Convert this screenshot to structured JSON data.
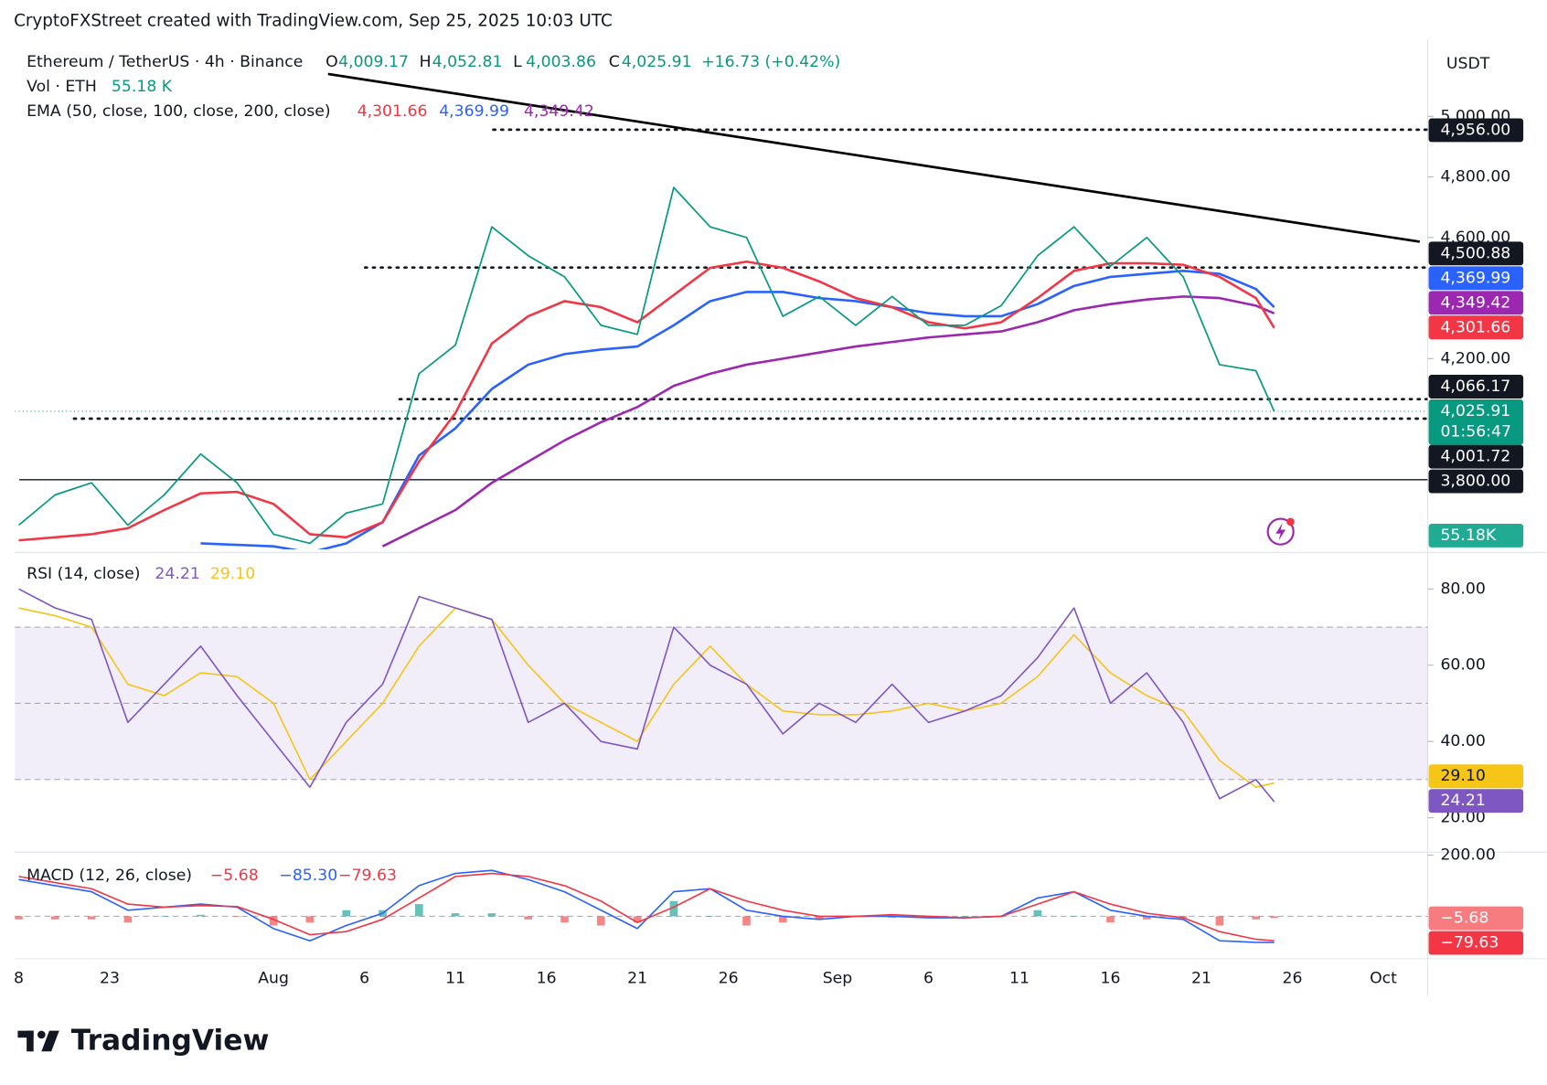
{
  "header": {
    "attribution": "CryptoFXStreet created with TradingView.com, Sep 25, 2025 10:03 UTC"
  },
  "time_axis": {
    "xlim": [
      "2025-07-18",
      "2025-10-03"
    ],
    "ticks": [
      {
        "value": "2025-07-18",
        "label": "8"
      },
      {
        "value": "2025-07-23",
        "label": "23"
      },
      {
        "value": "2025-08-01",
        "label": "Aug"
      },
      {
        "value": "2025-08-06",
        "label": "6"
      },
      {
        "value": "2025-08-11",
        "label": "11"
      },
      {
        "value": "2025-08-16",
        "label": "16"
      },
      {
        "value": "2025-08-21",
        "label": "21"
      },
      {
        "value": "2025-08-26",
        "label": "26"
      },
      {
        "value": "2025-09-01",
        "label": "Sep"
      },
      {
        "value": "2025-09-06",
        "label": "6"
      },
      {
        "value": "2025-09-11",
        "label": "11"
      },
      {
        "value": "2025-09-16",
        "label": "16"
      },
      {
        "value": "2025-09-21",
        "label": "21"
      },
      {
        "value": "2025-09-26",
        "label": "26"
      },
      {
        "value": "2025-10-01",
        "label": "Oct"
      }
    ]
  },
  "chart_data": [
    {
      "type": "line",
      "symbol": "Ethereum / TetherUS · 4h · Binance",
      "ohlc": [
        {
          "key": "O",
          "value": "4,009.17"
        },
        {
          "key": "H",
          "value": "4,052.81"
        },
        {
          "key": "L",
          "value": "4,003.86"
        },
        {
          "key": "C",
          "value": "4,025.91"
        }
      ],
      "change": "+16.73 (+0.42%)",
      "volume": {
        "label": "Vol · ETH",
        "value": "55.18 K",
        "axis_label": "55.18K",
        "color": "#22ab94"
      },
      "ema_label": "EMA (50, close, 100, close, 200, close)",
      "axis_unit": "USDT",
      "x": [
        "2025-07-18",
        "2025-07-20",
        "2025-07-22",
        "2025-07-24",
        "2025-07-26",
        "2025-07-28",
        "2025-07-30",
        "2025-08-01",
        "2025-08-03",
        "2025-08-05",
        "2025-08-07",
        "2025-08-09",
        "2025-08-11",
        "2025-08-13",
        "2025-08-15",
        "2025-08-17",
        "2025-08-19",
        "2025-08-21",
        "2025-08-23",
        "2025-08-25",
        "2025-08-27",
        "2025-08-29",
        "2025-08-31",
        "2025-09-02",
        "2025-09-04",
        "2025-09-06",
        "2025-09-08",
        "2025-09-10",
        "2025-09-12",
        "2025-09-14",
        "2025-09-16",
        "2025-09-18",
        "2025-09-20",
        "2025-09-22",
        "2025-09-24",
        "2025-09-25"
      ],
      "ylim": [
        3570,
        5254
      ],
      "yticks": [
        {
          "value": 5000,
          "label": "5,000.00"
        },
        {
          "value": 4800,
          "label": "4,800.00"
        },
        {
          "value": 4600,
          "label": "4,600.00"
        },
        {
          "value": 4200,
          "label": "4,200.00"
        }
      ],
      "series": [
        {
          "color": "#089981",
          "last_label": "4,025.91",
          "countdown": "01:56:47",
          "values": [
            3650,
            3750,
            3790,
            3650,
            3750,
            3885,
            3790,
            3620,
            3590,
            3690,
            3720,
            4150,
            4245,
            4635,
            4540,
            4470,
            4310,
            4280,
            4765,
            4635,
            4600,
            4340,
            4405,
            4310,
            4405,
            4310,
            4310,
            4375,
            4540,
            4635,
            4505,
            4600,
            4470,
            4180,
            4160,
            4025.91
          ]
        },
        {
          "color": "#f23645",
          "last_label": "4,301.66",
          "values": [
            3600,
            3610,
            3620,
            3640,
            3700,
            3755,
            3760,
            3720,
            3620,
            3610,
            3660,
            3860,
            4020,
            4250,
            4340,
            4390,
            4370,
            4320,
            4410,
            4500,
            4520,
            4500,
            4455,
            4400,
            4370,
            4320,
            4300,
            4320,
            4400,
            4490,
            4515,
            4515,
            4510,
            4470,
            4400,
            4301.66
          ]
        },
        {
          "color": "#2962ff",
          "last_label": "4,369.99",
          "values": [
            null,
            null,
            null,
            null,
            null,
            3590,
            3585,
            3580,
            3560,
            3590,
            3660,
            3880,
            3970,
            4100,
            4180,
            4215,
            4230,
            4240,
            4310,
            4390,
            4420,
            4420,
            4400,
            4390,
            4370,
            4350,
            4340,
            4340,
            4380,
            4440,
            4470,
            4480,
            4490,
            4480,
            4430,
            4369.99
          ]
        },
        {
          "color": "#9c27b0",
          "last_label": "4,349.42",
          "values": [
            null,
            null,
            null,
            null,
            null,
            null,
            null,
            null,
            null,
            null,
            3580,
            3640,
            3700,
            3790,
            3860,
            3930,
            3990,
            4040,
            4110,
            4150,
            4180,
            4200,
            4220,
            4240,
            4255,
            4270,
            4280,
            4290,
            4320,
            4360,
            4380,
            4395,
            4405,
            4400,
            4375,
            4349.42
          ]
        }
      ],
      "levels": [
        {
          "value": 4956,
          "label": "4,956.00",
          "style": "dotted"
        },
        {
          "value": 4500.88,
          "label": "4,500.88",
          "style": "dotted"
        },
        {
          "value": 4066.17,
          "label": "4,066.17",
          "style": "dotted"
        },
        {
          "value": 4001.72,
          "label": "4,001.72",
          "style": "dotted"
        },
        {
          "value": 3800,
          "label": "3,800.00",
          "style": "solid"
        }
      ],
      "trendline": {
        "x": [
          "2025-08-04",
          "2025-10-03"
        ],
        "values": [
          5140,
          4586
        ]
      }
    },
    {
      "type": "line",
      "title": "RSI (14, close)",
      "ylim": [
        11.2,
        89.6
      ],
      "yticks": [
        {
          "value": 80,
          "label": "80.00"
        },
        {
          "value": 60,
          "label": "60.00"
        },
        {
          "value": 40,
          "label": "40.00"
        },
        {
          "value": 20,
          "label": "20.00"
        }
      ],
      "band": [
        30,
        70
      ],
      "midline": 50,
      "band_color": "#7e57c2",
      "series": [
        {
          "color": "#7e57c2",
          "last_label": "24.21",
          "values": [
            80,
            75,
            72,
            45,
            55,
            65,
            52,
            40,
            28,
            45,
            55,
            78,
            75,
            72,
            45,
            50,
            40,
            38,
            70,
            60,
            55,
            42,
            50,
            45,
            55,
            45,
            48,
            52,
            62,
            75,
            50,
            58,
            45,
            25,
            30,
            24.21
          ]
        },
        {
          "color": "#f5c518",
          "last_label": "29.10",
          "values": [
            75,
            73,
            70,
            55,
            52,
            58,
            57,
            50,
            30,
            40,
            50,
            65,
            75,
            72,
            60,
            50,
            45,
            40,
            55,
            65,
            55,
            48,
            47,
            47,
            48,
            50,
            48,
            50,
            57,
            68,
            58,
            52,
            48,
            35,
            28,
            29.1
          ]
        }
      ]
    },
    {
      "type": "line",
      "title": "MACD (12, 26, close)",
      "ylim": [
        -132,
        206
      ],
      "yticks": [
        {
          "value": 200,
          "label": "200.00"
        }
      ],
      "histogram": {
        "last_label": "−5.68",
        "colors": [
          "#26a69a",
          "#ef5350"
        ],
        "values": [
          -10,
          -10,
          -10,
          -20,
          0,
          5,
          -2,
          -30,
          -20,
          20,
          20,
          40,
          10,
          10,
          -10,
          -20,
          -30,
          -20,
          50,
          0,
          -30,
          -20,
          -10,
          0,
          -5,
          -5,
          0,
          0,
          20,
          0,
          -20,
          -10,
          -5,
          -30,
          -10,
          -5.68
        ]
      },
      "series": [
        {
          "color": "#2962ff",
          "last_label": "−85.30",
          "values": [
            120,
            100,
            80,
            20,
            30,
            40,
            30,
            -40,
            -80,
            -30,
            10,
            100,
            140,
            150,
            120,
            80,
            20,
            -40,
            80,
            90,
            20,
            0,
            -10,
            0,
            0,
            -5,
            -5,
            0,
            60,
            80,
            20,
            0,
            -10,
            -80,
            -85,
            -85.3
          ]
        },
        {
          "color": "#f23645",
          "last_label": "−79.63",
          "values": [
            130,
            110,
            90,
            40,
            30,
            35,
            32,
            -10,
            -60,
            -50,
            -10,
            60,
            130,
            140,
            130,
            100,
            50,
            -20,
            30,
            90,
            50,
            20,
            0,
            0,
            5,
            0,
            -5,
            0,
            40,
            80,
            40,
            10,
            -5,
            -50,
            -75,
            -79.63
          ]
        }
      ]
    }
  ],
  "footer": {
    "logo": "TradingView"
  }
}
